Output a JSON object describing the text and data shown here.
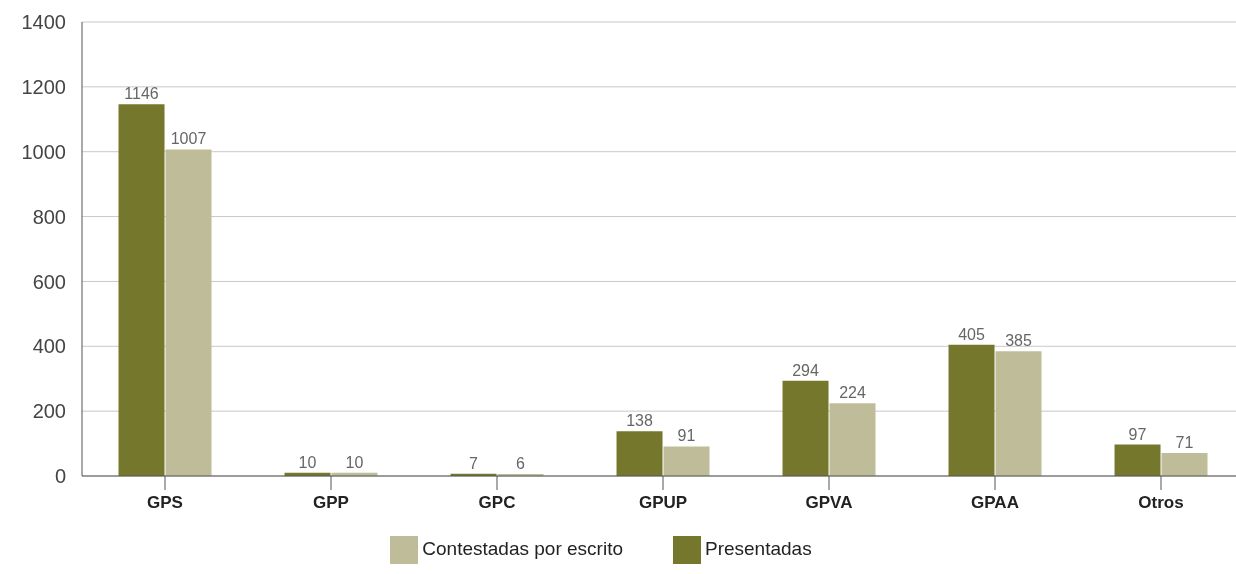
{
  "chart_data": {
    "type": "bar",
    "categories": [
      "GPS",
      "GPP",
      "GPC",
      "GPUP",
      "GPVA",
      "GPAA",
      "Otros"
    ],
    "series": [
      {
        "name": "Presentadas",
        "color": "#75782c",
        "values": [
          1146,
          10,
          7,
          138,
          294,
          405,
          97
        ]
      },
      {
        "name": "Contestadas por escrito",
        "color": "#bfbd99",
        "values": [
          1007,
          10,
          6,
          91,
          224,
          385,
          71
        ]
      }
    ],
    "ylim": [
      0,
      1400
    ],
    "yticks": [
      0,
      200,
      400,
      600,
      800,
      1000,
      1200,
      1400
    ],
    "grid": "y",
    "legend": "bottom",
    "data_labels": true
  }
}
